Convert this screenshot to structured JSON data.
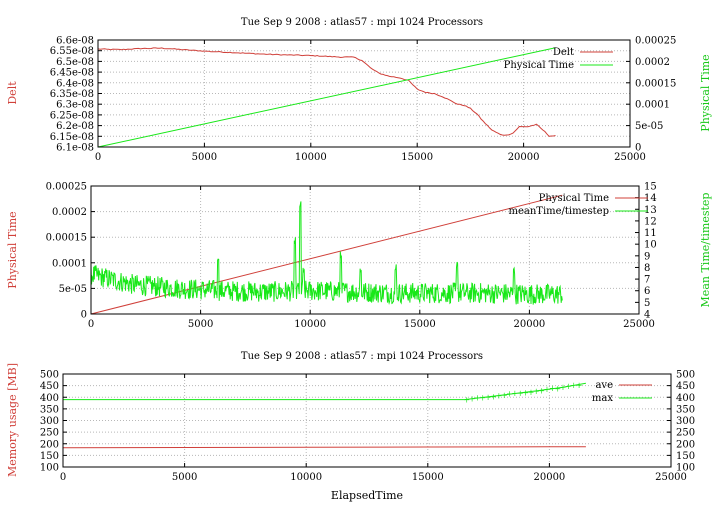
{
  "colors": {
    "red": "#d0403a",
    "green": "#18e818",
    "grid": "#b8b8b8",
    "frame": "#000000"
  },
  "chart_data": [
    {
      "type": "line",
      "title": "Tue Sep 9 2008 : atlas57 : mpi 1024 Processors",
      "ylabel": "Delt",
      "y2label": "Physical Time",
      "xlim": [
        0,
        25000
      ],
      "ylim": [
        6.1e-08,
        6.6e-08
      ],
      "y2lim": [
        0,
        0.00025
      ],
      "grid": true,
      "legend_position": "top-right",
      "x_ticks": [
        "0",
        "5000",
        "10000",
        "15000",
        "20000",
        "25000"
      ],
      "y_ticks": [
        "6.1e-08",
        "6.15e-08",
        "6.2e-08",
        "6.25e-08",
        "6.3e-08",
        "6.35e-08",
        "6.4e-08",
        "6.45e-08",
        "6.5e-08",
        "6.55e-08",
        "6.6e-08"
      ],
      "y2_ticks": [
        "0",
        "5e-05",
        "0.0001",
        "0.00015",
        "0.0002",
        "0.00025"
      ],
      "series": [
        {
          "name": "Delt",
          "axis": "y",
          "color": "red",
          "points": [
            [
              0,
              6.558e-08
            ],
            [
              1000,
              6.555e-08
            ],
            [
              2000,
              6.56e-08
            ],
            [
              3000,
              6.562e-08
            ],
            [
              4000,
              6.555e-08
            ],
            [
              5000,
              6.548e-08
            ],
            [
              6000,
              6.543e-08
            ],
            [
              7000,
              6.538e-08
            ],
            [
              8000,
              6.533e-08
            ],
            [
              9000,
              6.53e-08
            ],
            [
              10000,
              6.527e-08
            ],
            [
              10500,
              6.525e-08
            ],
            [
              11000,
              6.522e-08
            ],
            [
              11500,
              6.52e-08
            ],
            [
              12000,
              6.52e-08
            ],
            [
              12400,
              6.505e-08
            ],
            [
              12800,
              6.47e-08
            ],
            [
              13200,
              6.445e-08
            ],
            [
              13700,
              6.43e-08
            ],
            [
              14200,
              6.423e-08
            ],
            [
              14600,
              6.41e-08
            ],
            [
              15000,
              6.37e-08
            ],
            [
              15400,
              6.355e-08
            ],
            [
              15800,
              6.35e-08
            ],
            [
              16200,
              6.335e-08
            ],
            [
              16600,
              6.315e-08
            ],
            [
              16900,
              6.3e-08
            ],
            [
              17200,
              6.295e-08
            ],
            [
              17500,
              6.28e-08
            ],
            [
              17800,
              6.255e-08
            ],
            [
              18100,
              6.22e-08
            ],
            [
              18500,
              6.18e-08
            ],
            [
              18900,
              6.158e-08
            ],
            [
              19200,
              6.155e-08
            ],
            [
              19500,
              6.165e-08
            ],
            [
              19800,
              6.195e-08
            ],
            [
              20200,
              6.195e-08
            ],
            [
              20600,
              6.205e-08
            ],
            [
              20900,
              6.18e-08
            ],
            [
              21200,
              6.152e-08
            ],
            [
              21500,
              6.152e-08
            ]
          ]
        },
        {
          "name": "Physical Time",
          "axis": "y2",
          "color": "green",
          "points": [
            [
              0,
              0
            ],
            [
              21500,
              0.000232
            ]
          ]
        }
      ]
    },
    {
      "type": "line",
      "title": "",
      "ylabel": "Physical Time",
      "y2label": "Mean Time/timestep",
      "xlim": [
        0,
        25000
      ],
      "ylim": [
        0,
        0.00025
      ],
      "y2lim": [
        4,
        15
      ],
      "grid": true,
      "legend_position": "top-right",
      "x_ticks": [
        "0",
        "5000",
        "10000",
        "15000",
        "20000",
        "25000"
      ],
      "y_ticks": [
        "0",
        "5e-05",
        "0.0001",
        "0.00015",
        "0.0002",
        "0.00025"
      ],
      "y2_ticks": [
        "4",
        "5",
        "6",
        "7",
        "8",
        "9",
        "10",
        "11",
        "12",
        "13",
        "14",
        "15"
      ],
      "series": [
        {
          "name": "Physical Time",
          "axis": "y",
          "color": "red",
          "points": [
            [
              0,
              0
            ],
            [
              21500,
              0.000232
            ]
          ]
        },
        {
          "name": "meanTime/timestep",
          "axis": "y2",
          "color": "green",
          "baseline": [
            [
              0,
              7.4
            ],
            [
              2000,
              6.5
            ],
            [
              4000,
              6.2
            ],
            [
              6000,
              6.0
            ],
            [
              8000,
              5.9
            ],
            [
              10000,
              6.0
            ],
            [
              12000,
              5.9
            ],
            [
              14000,
              5.8
            ],
            [
              16000,
              5.8
            ],
            [
              18000,
              5.8
            ],
            [
              20000,
              5.7
            ],
            [
              21500,
              5.7
            ]
          ],
          "spikes": [
            [
              5800,
              8.8
            ],
            [
              9300,
              10.6
            ],
            [
              9550,
              13.8
            ],
            [
              9700,
              8.2
            ],
            [
              11400,
              9.5
            ],
            [
              12300,
              8.0
            ],
            [
              13900,
              8.3
            ],
            [
              16700,
              8.5
            ],
            [
              19300,
              8.0
            ]
          ]
        }
      ]
    },
    {
      "type": "line",
      "title": "Tue Sep 9 2008 : atlas57 : mpi 1024 Processors",
      "xlabel": "ElapsedTime",
      "ylabel": "Memory usage [MB]",
      "xlim": [
        0,
        25000
      ],
      "ylim": [
        100,
        500
      ],
      "y2lim": [
        100,
        500
      ],
      "grid": true,
      "legend_position": "top-right",
      "x_ticks": [
        "0",
        "5000",
        "10000",
        "15000",
        "20000",
        "25000"
      ],
      "y_ticks": [
        "100",
        "150",
        "200",
        "250",
        "300",
        "350",
        "400",
        "450",
        "500"
      ],
      "y2_ticks": [
        "100",
        "150",
        "200",
        "250",
        "300",
        "350",
        "400",
        "450",
        "500"
      ],
      "series": [
        {
          "name": "ave",
          "axis": "y",
          "color": "red",
          "points": [
            [
              0,
              183
            ],
            [
              5000,
              184
            ],
            [
              10000,
              185
            ],
            [
              15000,
              186
            ],
            [
              20000,
              187
            ],
            [
              21500,
              187
            ]
          ]
        },
        {
          "name": "max",
          "axis": "y",
          "color": "green",
          "points": [
            [
              0,
              390
            ],
            [
              16500,
              390
            ],
            [
              17500,
              402
            ],
            [
              18500,
              415
            ],
            [
              19500,
              428
            ],
            [
              20500,
              442
            ],
            [
              21500,
              460
            ]
          ]
        }
      ]
    }
  ]
}
